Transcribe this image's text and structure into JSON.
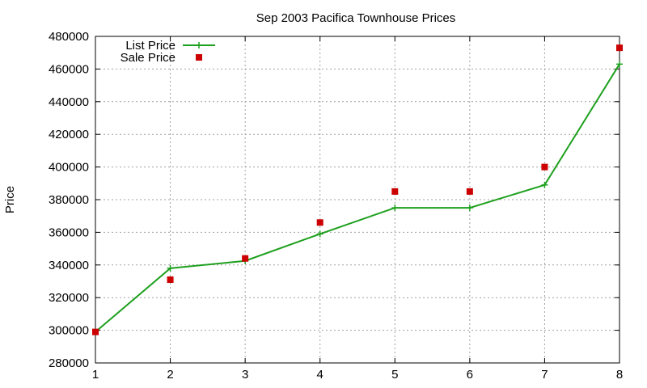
{
  "chart_data": {
    "type": "line",
    "title": "Sep 2003 Pacifica Townhouse Prices",
    "xlabel": "",
    "ylabel": "Price",
    "x": [
      1,
      2,
      3,
      4,
      5,
      6,
      7,
      8
    ],
    "xlim": [
      1,
      8
    ],
    "ylim": [
      280000,
      480000
    ],
    "x_ticks": [
      "1",
      "2",
      "3",
      "4",
      "5",
      "6",
      "7",
      "8"
    ],
    "y_ticks": [
      "280000",
      "300000",
      "320000",
      "340000",
      "360000",
      "380000",
      "400000",
      "420000",
      "440000",
      "460000",
      "480000"
    ],
    "grid": true,
    "legend_position": "top-left",
    "series": [
      {
        "name": "List Price",
        "style": "line-with-plus-markers",
        "color": "#1ea01e",
        "values": [
          299000,
          338000,
          342500,
          359000,
          375000,
          375000,
          389000,
          463000
        ]
      },
      {
        "name": "Sale Price",
        "style": "square-points",
        "color": "#cc0000",
        "values": [
          299000,
          331000,
          344000,
          366000,
          385000,
          385000,
          400000,
          473000
        ]
      }
    ]
  }
}
